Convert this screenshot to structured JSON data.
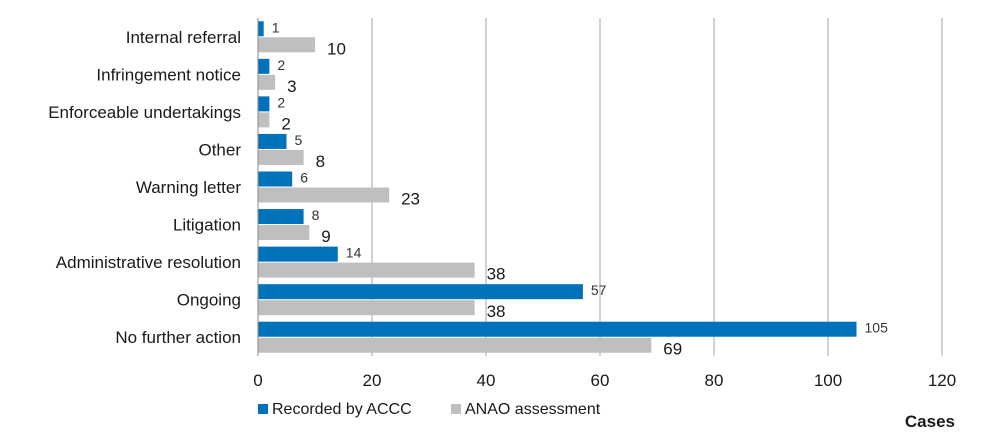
{
  "chart_data": {
    "type": "bar",
    "orientation": "horizontal",
    "categories": [
      "Internal referral",
      "Infringement notice",
      "Enforceable undertakings",
      "Other",
      "Warning letter",
      "Litigation",
      "Administrative resolution",
      "Ongoing",
      "No further action"
    ],
    "series": [
      {
        "name": "Recorded by ACCC",
        "color": "#0072bc",
        "values": [
          1,
          2,
          2,
          5,
          6,
          8,
          14,
          57,
          105
        ]
      },
      {
        "name": "ANAO assessment",
        "color": "#bfbfbf",
        "values": [
          10,
          3,
          2,
          8,
          23,
          9,
          38,
          38,
          69
        ]
      }
    ],
    "xlabel": "Cases",
    "xlim": [
      0,
      120
    ],
    "xticks": [
      0,
      20,
      40,
      60,
      80,
      100,
      120
    ],
    "grid": "vertical",
    "legend": "bottom-left"
  }
}
